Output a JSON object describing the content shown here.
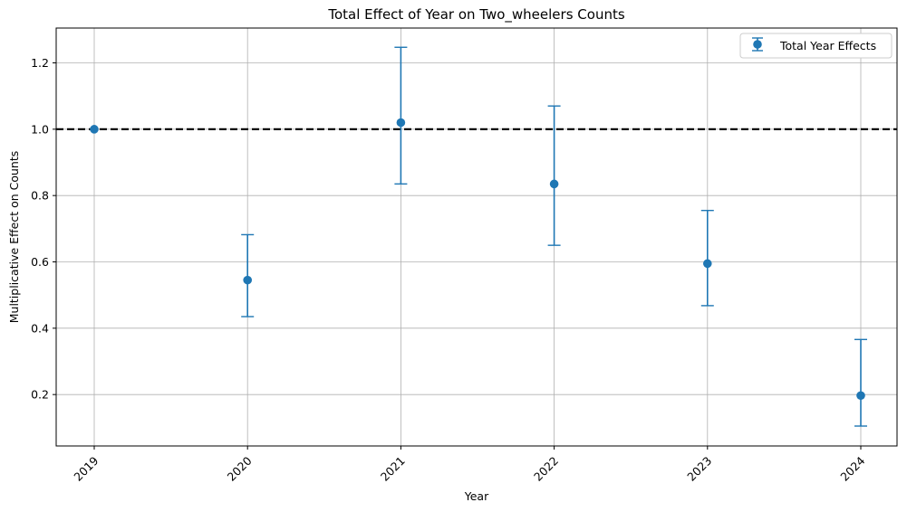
{
  "chart_data": {
    "type": "scatter",
    "title": "Total Effect of Year on Two_wheelers Counts",
    "xlabel": "Year",
    "ylabel": "Multiplicative Effect on Counts",
    "categories": [
      "2019",
      "2020",
      "2021",
      "2022",
      "2023",
      "2024"
    ],
    "series": [
      {
        "name": "Total Year Effects",
        "values": [
          1.0,
          0.545,
          1.02,
          0.835,
          0.595,
          0.197
        ],
        "lower": [
          1.0,
          0.435,
          0.835,
          0.65,
          0.468,
          0.105
        ],
        "upper": [
          1.0,
          0.682,
          1.247,
          1.07,
          0.755,
          0.366
        ]
      }
    ],
    "reference_line": 1.0,
    "ylim": [
      0.045,
      1.305
    ],
    "yticks": [
      0.2,
      0.4,
      0.6,
      0.8,
      1.0,
      1.2
    ],
    "ytick_labels": [
      "0.2",
      "0.4",
      "0.6",
      "0.8",
      "1.0",
      "1.2"
    ],
    "grid": true,
    "legend_position": "top-right",
    "colors": {
      "series": "#1f77b4",
      "reference": "#000000",
      "grid": "#b0b0b0"
    }
  }
}
